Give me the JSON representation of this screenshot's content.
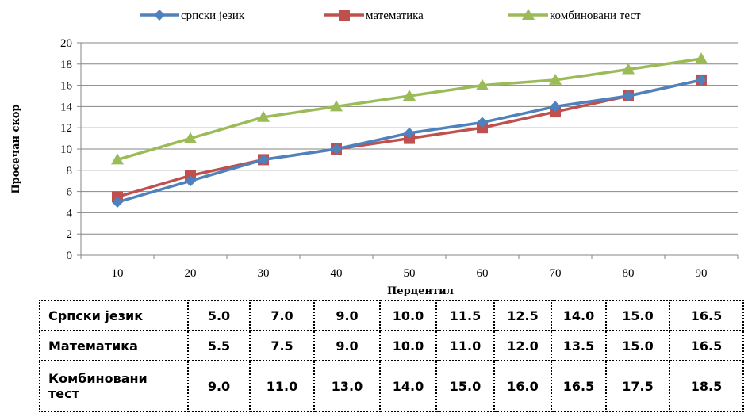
{
  "chart_data": {
    "type": "line",
    "xlabel": "Перцентил",
    "ylabel": "Просечан скор",
    "categories": [
      "10",
      "20",
      "30",
      "40",
      "50",
      "60",
      "70",
      "80",
      "90"
    ],
    "ylim": [
      0,
      20
    ],
    "ytick_step": 2,
    "grid": "horizontal",
    "legend_position": "top",
    "series": [
      {
        "name": "српски језик",
        "color": "#4f81bd",
        "marker": "diamond",
        "values": [
          5.0,
          7.0,
          9.0,
          10.0,
          11.5,
          12.5,
          14.0,
          15.0,
          16.5
        ]
      },
      {
        "name": "математика",
        "color": "#c0504d",
        "marker": "square",
        "values": [
          5.5,
          7.5,
          9.0,
          10.0,
          11.0,
          12.0,
          13.5,
          15.0,
          16.5
        ]
      },
      {
        "name": "комбиновани тест",
        "color": "#9bbb59",
        "marker": "triangle",
        "values": [
          9.0,
          11.0,
          13.0,
          14.0,
          15.0,
          16.0,
          16.5,
          17.5,
          18.5
        ]
      }
    ]
  },
  "table": {
    "rows": [
      {
        "label": "Српски језик",
        "values": [
          "5.0",
          "7.0",
          "9.0",
          "10.0",
          "11.5",
          "12.5",
          "14.0",
          "15.0",
          "16.5"
        ]
      },
      {
        "label": "Математика",
        "values": [
          "5.5",
          "7.5",
          "9.0",
          "10.0",
          "11.0",
          "12.0",
          "13.5",
          "15.0",
          "16.5"
        ]
      },
      {
        "label": "Комбиновани тест",
        "values": [
          "9.0",
          "11.0",
          "13.0",
          "14.0",
          "15.0",
          "16.0",
          "16.5",
          "17.5",
          "18.5"
        ]
      }
    ]
  }
}
